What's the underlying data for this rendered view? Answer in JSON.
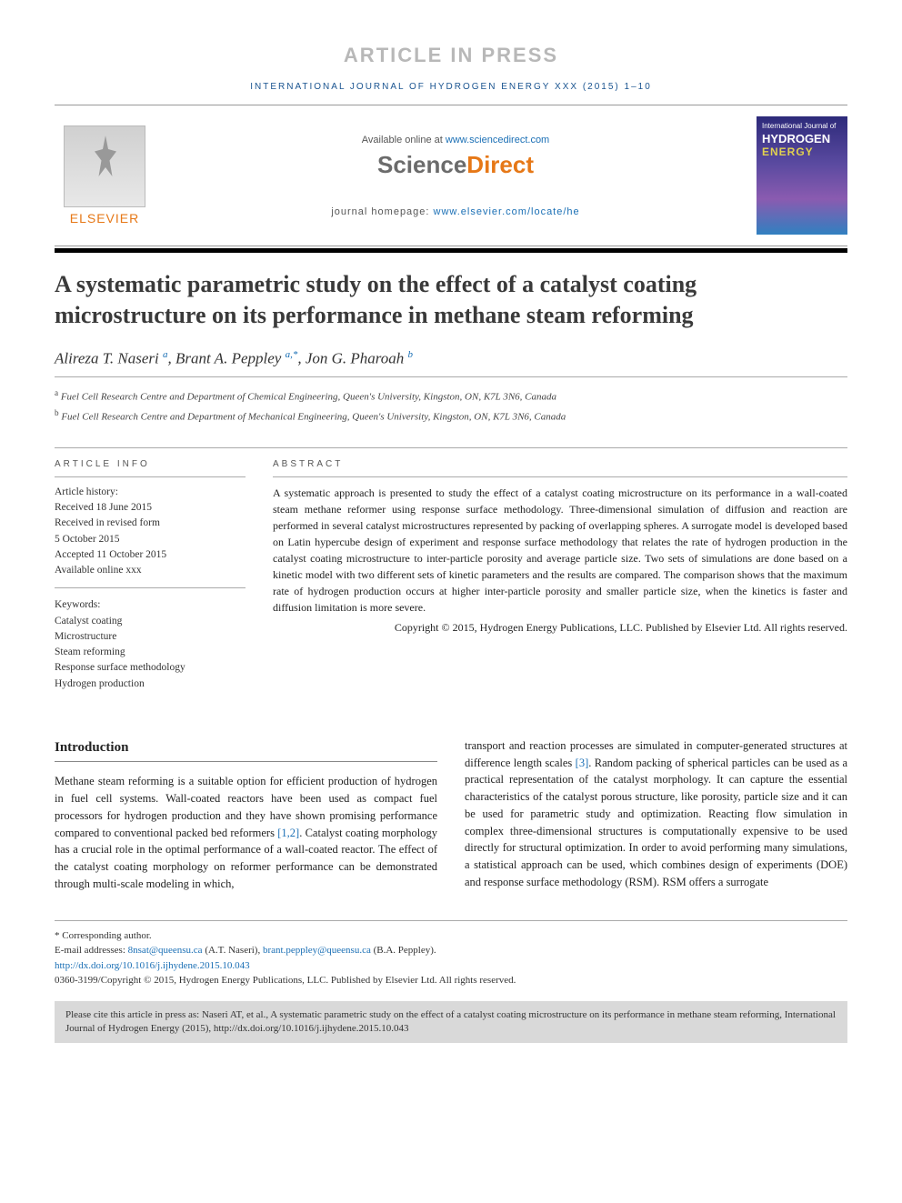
{
  "banner": "ARTICLE IN PRESS",
  "journal_header": "INTERNATIONAL JOURNAL OF HYDROGEN ENERGY XXX (2015) 1–10",
  "header": {
    "available_prefix": "Available online at ",
    "available_link": "www.sciencedirect.com",
    "sd_science": "Science",
    "sd_direct": "Direct",
    "homepage_prefix": "journal homepage: ",
    "homepage_link": "www.elsevier.com/locate/he",
    "elsevier": "ELSEVIER",
    "cover_line1": "International Journal of",
    "cover_line2": "HYDROGEN",
    "cover_line3": "ENERGY"
  },
  "title": "A systematic parametric study on the effect of a catalyst coating microstructure on its performance in methane steam reforming",
  "authors": {
    "a1_name": "Alireza T. Naseri",
    "a1_aff": "a",
    "a2_name": "Brant A. Peppley",
    "a2_aff": "a,",
    "a2_corr": "*",
    "a3_name": "Jon G. Pharoah",
    "a3_aff": "b"
  },
  "affiliations": {
    "a": "Fuel Cell Research Centre and Department of Chemical Engineering, Queen's University, Kingston, ON, K7L 3N6, Canada",
    "b": "Fuel Cell Research Centre and Department of Mechanical Engineering, Queen's University, Kingston, ON, K7L 3N6, Canada"
  },
  "info": {
    "heading": "ARTICLE INFO",
    "history_label": "Article history:",
    "received": "Received 18 June 2015",
    "revised1": "Received in revised form",
    "revised2": "5 October 2015",
    "accepted": "Accepted 11 October 2015",
    "online": "Available online xxx",
    "keywords_label": "Keywords:",
    "kw1": "Catalyst coating",
    "kw2": "Microstructure",
    "kw3": "Steam reforming",
    "kw4": "Response surface methodology",
    "kw5": "Hydrogen production"
  },
  "abstract": {
    "heading": "ABSTRACT",
    "text": "A systematic approach is presented to study the effect of a catalyst coating microstructure on its performance in a wall-coated steam methane reformer using response surface methodology. Three-dimensional simulation of diffusion and reaction are performed in several catalyst microstructures represented by packing of overlapping spheres. A surrogate model is developed based on Latin hypercube design of experiment and response surface methodology that relates the rate of hydrogen production in the catalyst coating microstructure to inter-particle porosity and average particle size. Two sets of simulations are done based on a kinetic model with two different sets of kinetic parameters and the results are compared. The comparison shows that the maximum rate of hydrogen production occurs at higher inter-particle porosity and smaller particle size, when the kinetics is faster and diffusion limitation is more severe.",
    "copyright": "Copyright © 2015, Hydrogen Energy Publications, LLC. Published by Elsevier Ltd. All rights reserved."
  },
  "body": {
    "intro_heading": "Introduction",
    "col1": "Methane steam reforming is a suitable option for efficient production of hydrogen in fuel cell systems. Wall-coated reactors have been used as compact fuel processors for hydrogen production and they have shown promising performance compared to conventional packed bed reformers ",
    "ref12": "[1,2]",
    "col1b": ". Catalyst coating morphology has a crucial role in the optimal performance of a wall-coated reactor. The effect of the catalyst coating morphology on reformer performance can be demonstrated through multi-scale modeling in which,",
    "col2a": "transport and reaction processes are simulated in computer-generated structures at difference length scales ",
    "ref3": "[3]",
    "col2b": ". Random packing of spherical particles can be used as a practical representation of the catalyst morphology. It can capture the essential characteristics of the catalyst porous structure, like porosity, particle size and it can be used for parametric study and optimization. Reacting flow simulation in complex three-dimensional structures is computationally expensive to be used directly for structural optimization. In order to avoid performing many simulations, a statistical approach can be used, which combines design of experiments (DOE) and response surface methodology (RSM). RSM offers a surrogate"
  },
  "footer": {
    "corr": "* Corresponding author.",
    "email_label": "E-mail addresses: ",
    "email1": "8nsat@queensu.ca",
    "email1_name": " (A.T. Naseri), ",
    "email2": "brant.peppley@queensu.ca",
    "email2_name": " (B.A. Peppley).",
    "doi": "http://dx.doi.org/10.1016/j.ijhydene.2015.10.043",
    "issn_copy": "0360-3199/Copyright © 2015, Hydrogen Energy Publications, LLC. Published by Elsevier Ltd. All rights reserved."
  },
  "citebox": "Please cite this article in press as: Naseri AT, et al., A systematic parametric study on the effect of a catalyst coating microstructure on its performance in methane steam reforming, International Journal of Hydrogen Energy (2015), http://dx.doi.org/10.1016/j.ijhydene.2015.10.043"
}
